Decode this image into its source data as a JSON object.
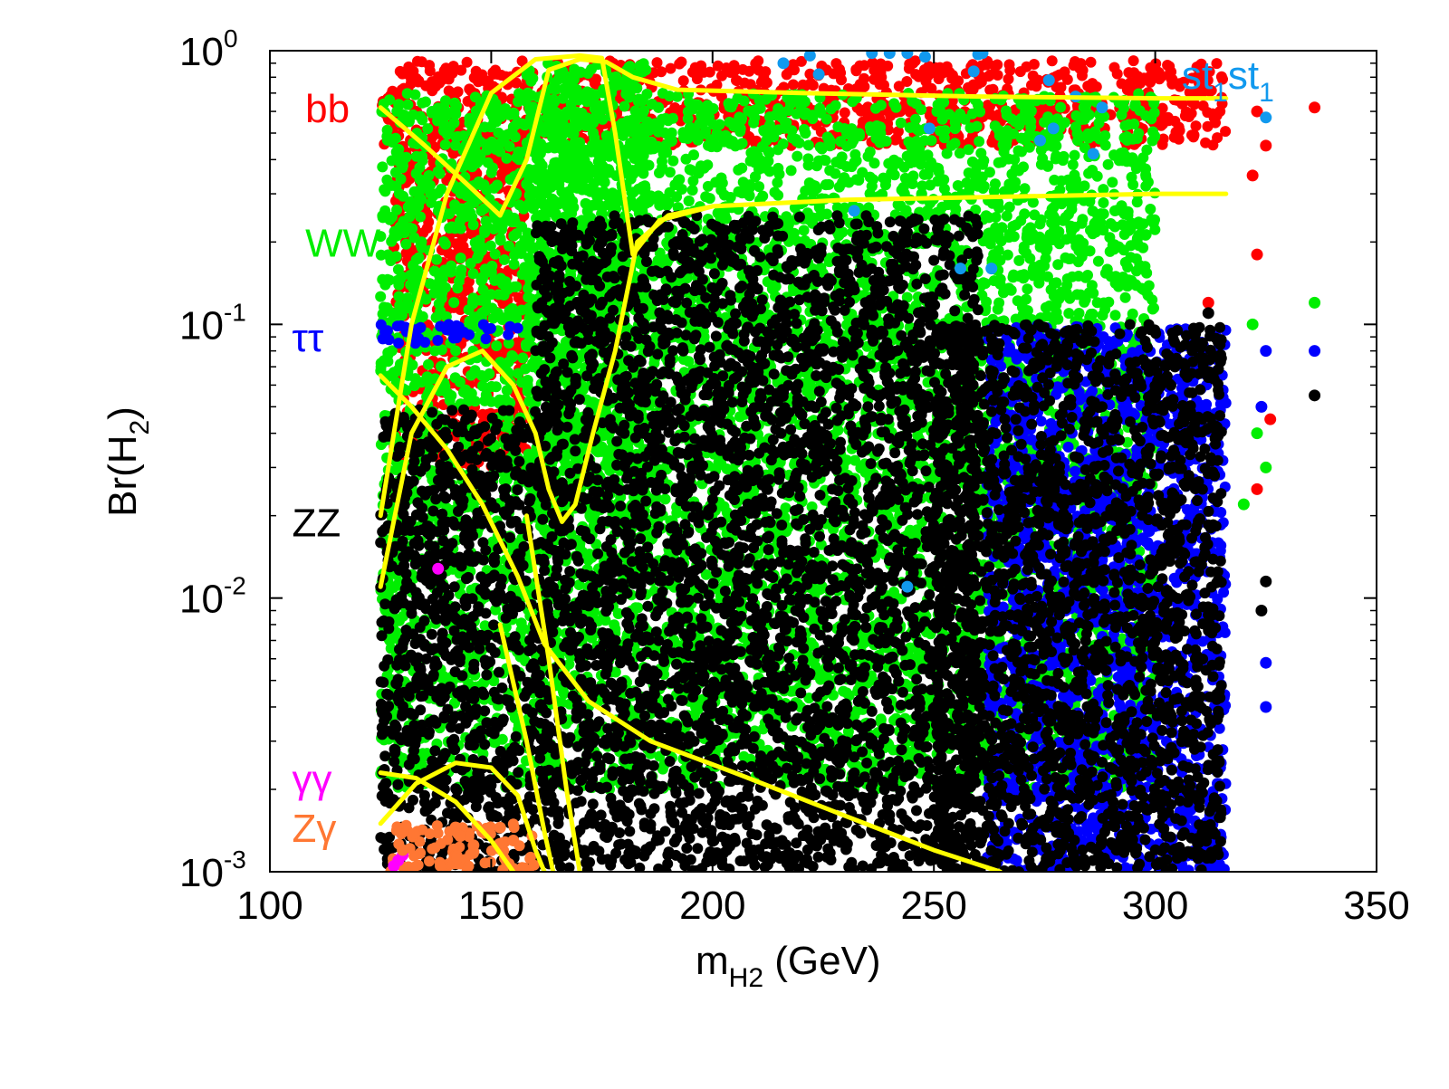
{
  "chart_data": {
    "type": "scatter",
    "xlabel": {
      "base": "m",
      "subscript": "H2",
      "suffix": " (GeV)"
    },
    "ylabel": {
      "prefix": "Br(H",
      "subscript": "2",
      "suffix": ")"
    },
    "xlim": [
      100,
      350
    ],
    "ylim": [
      0.001,
      1
    ],
    "yscale": "log",
    "xticks": [
      {
        "value": 100,
        "label": "100"
      },
      {
        "value": 150,
        "label": "150"
      },
      {
        "value": 200,
        "label": "200"
      },
      {
        "value": 250,
        "label": "250"
      },
      {
        "value": 300,
        "label": "300"
      },
      {
        "value": 350,
        "label": "350"
      }
    ],
    "yticks": [
      {
        "value": 1,
        "base": "10",
        "exp": "0"
      },
      {
        "value": 0.1,
        "base": "10",
        "exp": "-1"
      },
      {
        "value": 0.01,
        "base": "10",
        "exp": "-2"
      },
      {
        "value": 0.001,
        "base": "10",
        "exp": "-3"
      }
    ],
    "series": [
      {
        "name": "bb",
        "label": "bb",
        "color": "#ff0000",
        "label_anchor": [
          108,
          0.62
        ],
        "regions": [
          {
            "xmin": 125,
            "xmax": 316,
            "ymin": 0.45,
            "ymax": 0.92
          },
          {
            "xmin": 128,
            "xmax": 158,
            "ymin": 0.03,
            "ymax": 0.5
          }
        ],
        "points": [
          [
            323,
            0.6
          ],
          [
            325,
            0.45
          ],
          [
            322,
            0.35
          ],
          [
            336,
            0.62
          ],
          [
            323,
            0.18
          ],
          [
            326,
            0.045
          ],
          [
            323,
            0.025
          ],
          [
            312,
            0.12
          ]
        ]
      },
      {
        "name": "WW",
        "label": "WW",
        "color": "#00ee00",
        "label_anchor": [
          108,
          0.2
        ],
        "regions": [
          {
            "xmin": 125,
            "xmax": 300,
            "ymin": 0.002,
            "ymax": 0.7
          },
          {
            "xmin": 158,
            "xmax": 185,
            "ymin": 0.02,
            "ymax": 0.9
          }
        ],
        "points": [
          [
            322,
            0.1
          ],
          [
            336,
            0.12
          ],
          [
            323,
            0.04
          ],
          [
            325,
            0.03
          ],
          [
            320,
            0.022
          ]
        ]
      },
      {
        "name": "tt",
        "label": "ττ",
        "color": "#0000ff",
        "label_anchor": [
          105,
          0.09
        ],
        "regions": [
          {
            "xmin": 125,
            "xmax": 157,
            "ymin": 0.085,
            "ymax": 0.1
          },
          {
            "xmin": 262,
            "xmax": 316,
            "ymin": 0.001,
            "ymax": 0.1
          }
        ],
        "points": [
          [
            336,
            0.08
          ],
          [
            325,
            0.08
          ],
          [
            324,
            0.05
          ],
          [
            325,
            0.0058
          ],
          [
            325,
            0.004
          ]
        ]
      },
      {
        "name": "ZZ",
        "label": "ZZ",
        "color": "#000000",
        "label_anchor": [
          105,
          0.019
        ],
        "regions": [
          {
            "xmin": 160,
            "xmax": 260,
            "ymin": 0.001,
            "ymax": 0.25
          },
          {
            "xmin": 125,
            "xmax": 160,
            "ymin": 0.001,
            "ymax": 0.05
          },
          {
            "xmin": 250,
            "xmax": 315,
            "ymin": 0.001,
            "ymax": 0.1
          }
        ],
        "points": [
          [
            336,
            0.055
          ],
          [
            325,
            0.0115
          ],
          [
            324,
            0.009
          ],
          [
            313,
            0.0014
          ],
          [
            312,
            0.11
          ]
        ]
      },
      {
        "name": "gg",
        "label": "γγ",
        "color": "#ff00ff",
        "label_anchor": [
          105,
          0.0022
        ],
        "regions": [],
        "points": [
          [
            128,
            0.00105
          ],
          [
            129,
            0.0011
          ],
          [
            138,
            0.0128
          ],
          [
            130,
            0.00115
          ]
        ]
      },
      {
        "name": "Zg",
        "label": "Zγ",
        "color": "#ff7733",
        "label_anchor": [
          105,
          0.00145
        ],
        "regions": [
          {
            "xmin": 127,
            "xmax": 160,
            "ymin": 0.001,
            "ymax": 0.0015
          }
        ],
        "points": [
          [
            130,
            0.0012
          ],
          [
            143,
            0.00135
          ],
          [
            148,
            0.0014
          ],
          [
            152,
            0.00145
          ],
          [
            155,
            0.0013
          ],
          [
            146,
            0.00125
          ]
        ]
      },
      {
        "name": "st1st1",
        "label": "st",
        "label2": "st",
        "sub": "1",
        "color": "#1199ee",
        "label_anchor": [
          306,
          0.82
        ],
        "regions": [],
        "points": [
          [
            216,
            0.9
          ],
          [
            222,
            0.96
          ],
          [
            236,
            0.98
          ],
          [
            240,
            0.98
          ],
          [
            244,
            0.98
          ],
          [
            248,
            0.95
          ],
          [
            260,
            0.97
          ],
          [
            261,
            0.98
          ],
          [
            224,
            0.82
          ],
          [
            259,
            0.84
          ],
          [
            276,
            0.78
          ],
          [
            282,
            0.68
          ],
          [
            288,
            0.62
          ],
          [
            325,
            0.57
          ],
          [
            249,
            0.52
          ],
          [
            274,
            0.47
          ],
          [
            277,
            0.52
          ],
          [
            286,
            0.42
          ],
          [
            232,
            0.26
          ],
          [
            256,
            0.16
          ],
          [
            263,
            0.16
          ],
          [
            244,
            0.011
          ]
        ]
      }
    ],
    "curves": [
      {
        "name": "bb",
        "color": "#ffff00",
        "points": [
          [
            125,
            0.62
          ],
          [
            135,
            0.45
          ],
          [
            145,
            0.32
          ],
          [
            152,
            0.25
          ],
          [
            158,
            0.4
          ],
          [
            163,
            0.85
          ],
          [
            170,
            0.93
          ],
          [
            176,
            0.91
          ],
          [
            182,
            0.8
          ],
          [
            192,
            0.72
          ],
          [
            220,
            0.7
          ],
          [
            260,
            0.68
          ],
          [
            300,
            0.67
          ],
          [
            316,
            0.67
          ]
        ]
      },
      {
        "name": "WW",
        "color": "#ffff00",
        "points": [
          [
            125,
            0.02
          ],
          [
            132,
            0.1
          ],
          [
            140,
            0.3
          ],
          [
            150,
            0.7
          ],
          [
            160,
            0.93
          ],
          [
            170,
            0.96
          ],
          [
            175,
            0.94
          ],
          [
            178,
            0.5
          ],
          [
            182,
            0.18
          ],
          [
            188,
            0.24
          ],
          [
            200,
            0.27
          ],
          [
            230,
            0.285
          ],
          [
            300,
            0.3
          ],
          [
            316,
            0.3
          ]
        ]
      },
      {
        "name": "tt",
        "color": "#ffff00",
        "points": [
          [
            125,
            0.065
          ],
          [
            132,
            0.05
          ],
          [
            140,
            0.035
          ],
          [
            148,
            0.022
          ],
          [
            156,
            0.012
          ],
          [
            162,
            0.0068
          ],
          [
            172,
            0.0042
          ],
          [
            186,
            0.003
          ],
          [
            205,
            0.0023
          ],
          [
            230,
            0.0016
          ],
          [
            250,
            0.0012
          ],
          [
            265,
            0.001
          ]
        ]
      },
      {
        "name": "ZZ",
        "color": "#ffff00",
        "points": [
          [
            125,
            0.011
          ],
          [
            132,
            0.04
          ],
          [
            140,
            0.07
          ],
          [
            148,
            0.08
          ],
          [
            155,
            0.06
          ],
          [
            160,
            0.04
          ],
          [
            163,
            0.025
          ],
          [
            166,
            0.019
          ],
          [
            169,
            0.022
          ],
          [
            173,
            0.04
          ],
          [
            178,
            0.08
          ],
          [
            183,
            0.2
          ],
          [
            190,
            0.25
          ],
          [
            200,
            0.27
          ]
        ]
      },
      {
        "name": "gg",
        "color": "#ffff00",
        "points": [
          [
            125,
            0.0023
          ],
          [
            133,
            0.0022
          ],
          [
            142,
            0.0018
          ],
          [
            150,
            0.0013
          ],
          [
            155,
            0.001
          ]
        ]
      },
      {
        "name": "Zg",
        "color": "#ffff00",
        "points": [
          [
            125,
            0.0015
          ],
          [
            133,
            0.0021
          ],
          [
            142,
            0.0025
          ],
          [
            150,
            0.0024
          ],
          [
            156,
            0.0019
          ],
          [
            160,
            0.0012
          ],
          [
            162,
            0.001
          ]
        ]
      },
      {
        "name": "tt-low",
        "color": "#ffff00",
        "points": [
          [
            152,
            0.008
          ],
          [
            158,
            0.003
          ],
          [
            162,
            0.0014
          ],
          [
            164,
            0.001
          ]
        ]
      },
      {
        "name": "ZZ-low",
        "color": "#ffff00",
        "points": [
          [
            158,
            0.02
          ],
          [
            163,
            0.006
          ],
          [
            167,
            0.002
          ],
          [
            170,
            0.001
          ]
        ]
      }
    ]
  }
}
